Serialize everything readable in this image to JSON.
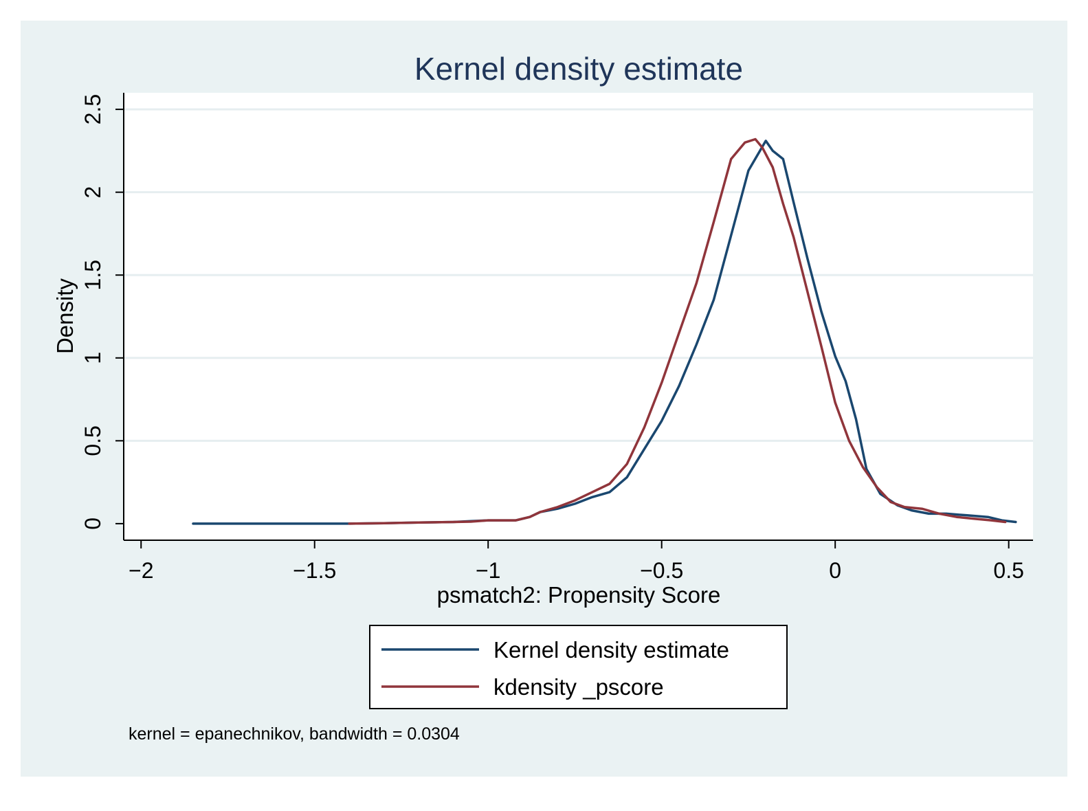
{
  "chart_data": {
    "type": "line",
    "title": "Kernel density estimate",
    "xlabel": "psmatch2: Propensity Score",
    "ylabel": "Density",
    "xlim": [
      -2.05,
      0.57
    ],
    "ylim": [
      -0.1,
      2.6
    ],
    "x_ticks": [
      -2,
      -1.5,
      -1,
      -0.5,
      0,
      0.5
    ],
    "x_tick_labels": [
      "−2",
      "−1.5",
      "−1",
      "−0.5",
      "0",
      "0.5"
    ],
    "y_ticks": [
      0,
      0.5,
      1,
      1.5,
      2,
      2.5
    ],
    "y_tick_labels": [
      "0",
      "0.5",
      "1",
      "1.5",
      "2",
      "2.5"
    ],
    "grid": true,
    "legend_position": "bottom",
    "note": "kernel = epanechnikov, bandwidth = 0.0304",
    "colors": {
      "outer_background": "#eaf2f3",
      "plot_background": "#ffffff",
      "grid": "#e6eef0",
      "title": "#1f3559"
    },
    "series": [
      {
        "name": "Kernel density estimate",
        "color": "#1a476f",
        "x": [
          -1.85,
          -1.75,
          -1.6,
          -1.4,
          -1.3,
          -1.2,
          -1.1,
          -1.05,
          -1.0,
          -0.95,
          -0.92,
          -0.88,
          -0.85,
          -0.8,
          -0.75,
          -0.7,
          -0.65,
          -0.6,
          -0.55,
          -0.5,
          -0.45,
          -0.4,
          -0.35,
          -0.3,
          -0.25,
          -0.2,
          -0.18,
          -0.15,
          -0.12,
          -0.08,
          -0.04,
          0.0,
          0.03,
          0.06,
          0.09,
          0.13,
          0.18,
          0.22,
          0.27,
          0.32,
          0.38,
          0.44,
          0.48,
          0.52
        ],
        "y": [
          0.0,
          0.0,
          0.0,
          0.0,
          0.003,
          0.007,
          0.01,
          0.015,
          0.02,
          0.02,
          0.02,
          0.04,
          0.07,
          0.09,
          0.12,
          0.16,
          0.19,
          0.28,
          0.45,
          0.62,
          0.83,
          1.08,
          1.35,
          1.74,
          2.13,
          2.31,
          2.25,
          2.2,
          1.94,
          1.6,
          1.28,
          1.01,
          0.86,
          0.63,
          0.33,
          0.18,
          0.11,
          0.08,
          0.06,
          0.06,
          0.05,
          0.04,
          0.02,
          0.01
        ]
      },
      {
        "name": "kdensity _pscore",
        "color": "#90353b",
        "x": [
          -1.4,
          -1.3,
          -1.2,
          -1.1,
          -1.05,
          -1.0,
          -0.95,
          -0.92,
          -0.88,
          -0.85,
          -0.8,
          -0.75,
          -0.7,
          -0.65,
          -0.6,
          -0.55,
          -0.5,
          -0.45,
          -0.4,
          -0.35,
          -0.3,
          -0.26,
          -0.23,
          -0.21,
          -0.18,
          -0.15,
          -0.12,
          -0.08,
          -0.04,
          0.0,
          0.04,
          0.08,
          0.12,
          0.16,
          0.2,
          0.25,
          0.3,
          0.35,
          0.4,
          0.45,
          0.49
        ],
        "y": [
          0.0,
          0.003,
          0.007,
          0.01,
          0.012,
          0.02,
          0.02,
          0.02,
          0.04,
          0.07,
          0.1,
          0.14,
          0.19,
          0.24,
          0.36,
          0.58,
          0.85,
          1.15,
          1.45,
          1.82,
          2.2,
          2.3,
          2.32,
          2.27,
          2.15,
          1.93,
          1.73,
          1.4,
          1.07,
          0.73,
          0.5,
          0.34,
          0.22,
          0.13,
          0.1,
          0.09,
          0.06,
          0.04,
          0.03,
          0.02,
          0.01
        ]
      }
    ]
  }
}
